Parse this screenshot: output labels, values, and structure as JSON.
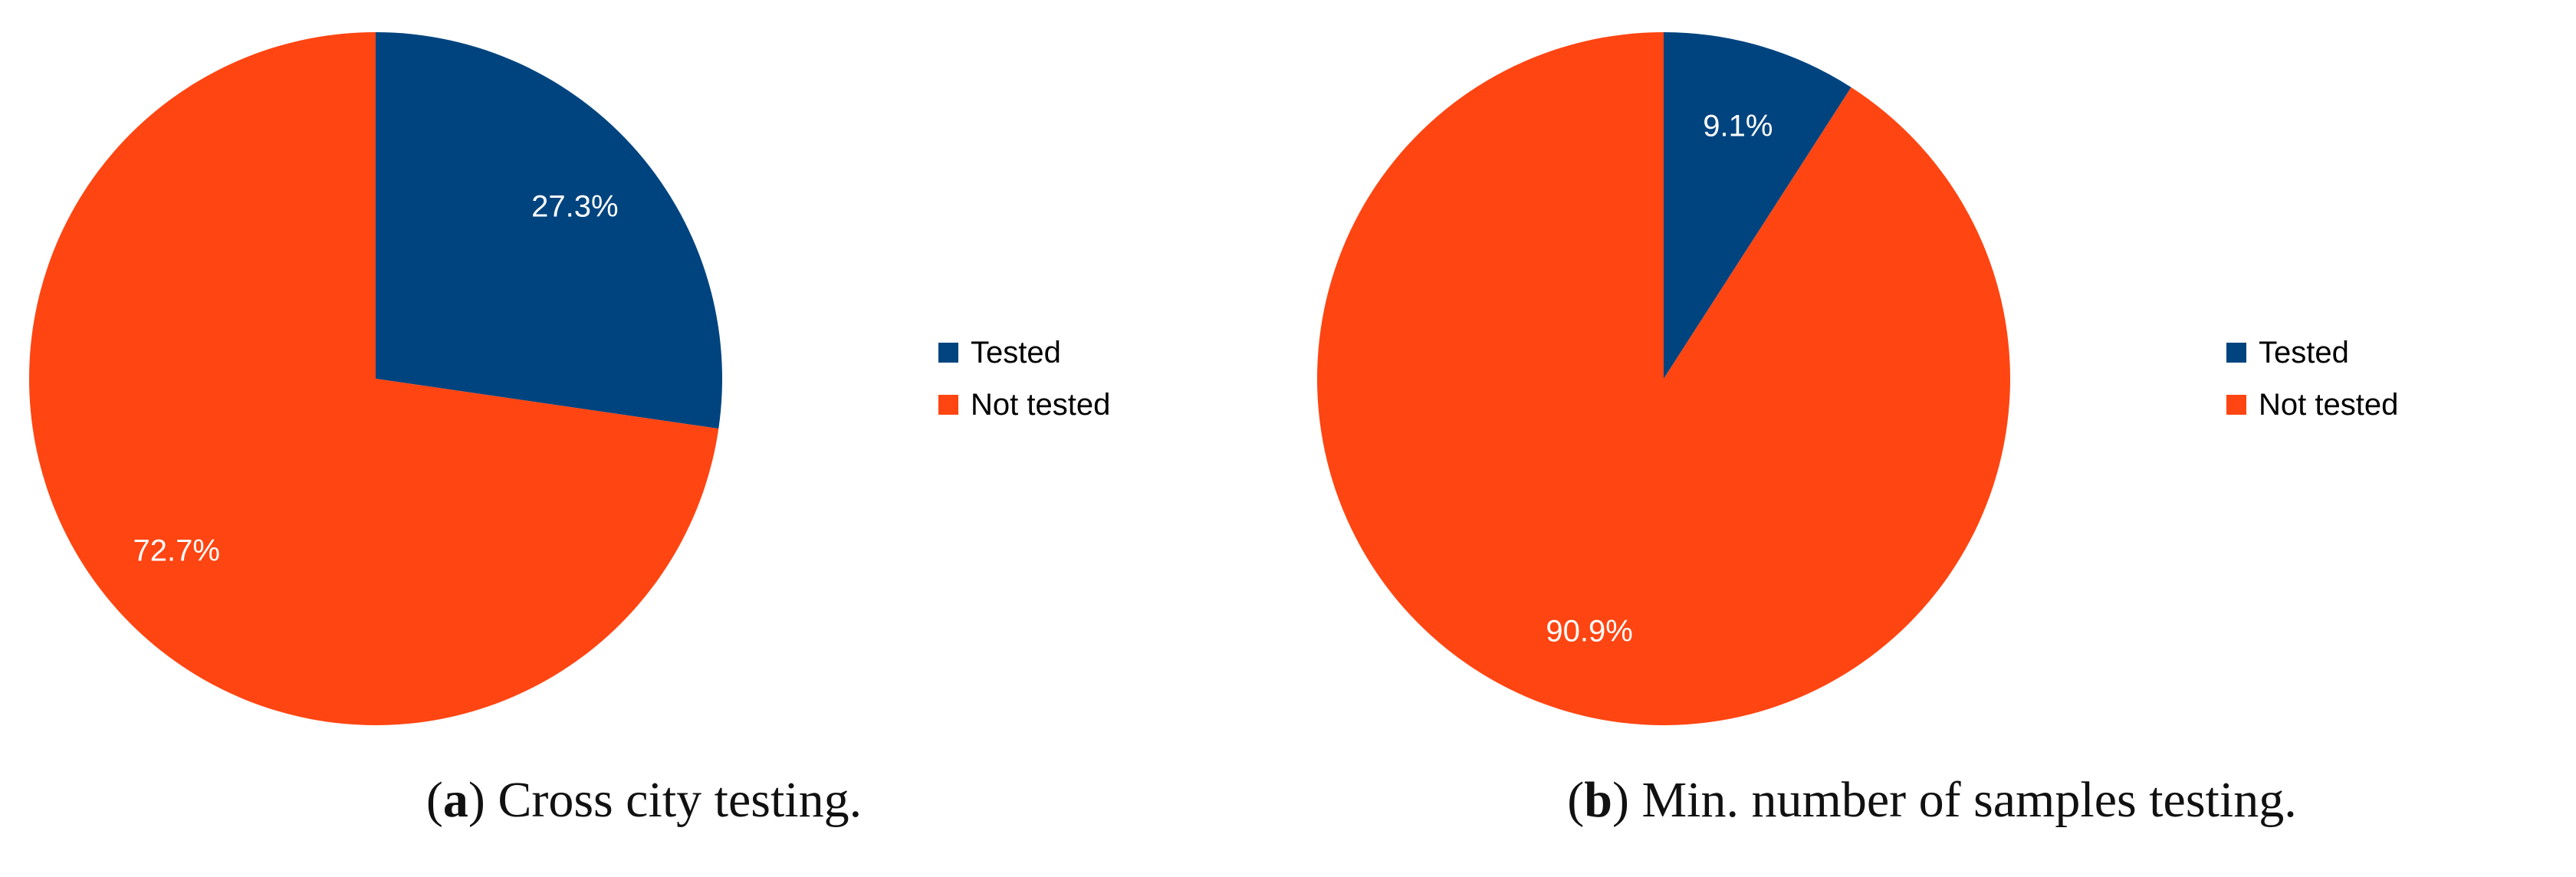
{
  "chart_data": [
    {
      "type": "pie",
      "categories": [
        "Tested",
        "Not tested"
      ],
      "values": [
        27.3,
        72.7
      ],
      "value_labels": [
        "27.3%",
        "72.7%"
      ],
      "colors": [
        "#00447f",
        "#ff4512"
      ],
      "legend": {
        "placement": "right",
        "entries": [
          "Tested",
          "Not tested"
        ]
      },
      "caption": {
        "letter": "a",
        "text": "Cross city testing."
      }
    },
    {
      "type": "pie",
      "categories": [
        "Tested",
        "Not tested"
      ],
      "values": [
        9.1,
        90.9
      ],
      "value_labels": [
        "9.1%",
        "90.9%"
      ],
      "colors": [
        "#00447f",
        "#ff4512"
      ],
      "legend": {
        "placement": "right",
        "entries": [
          "Tested",
          "Not tested"
        ]
      },
      "caption": {
        "letter": "b",
        "text": "Min. number of samples testing."
      }
    }
  ]
}
